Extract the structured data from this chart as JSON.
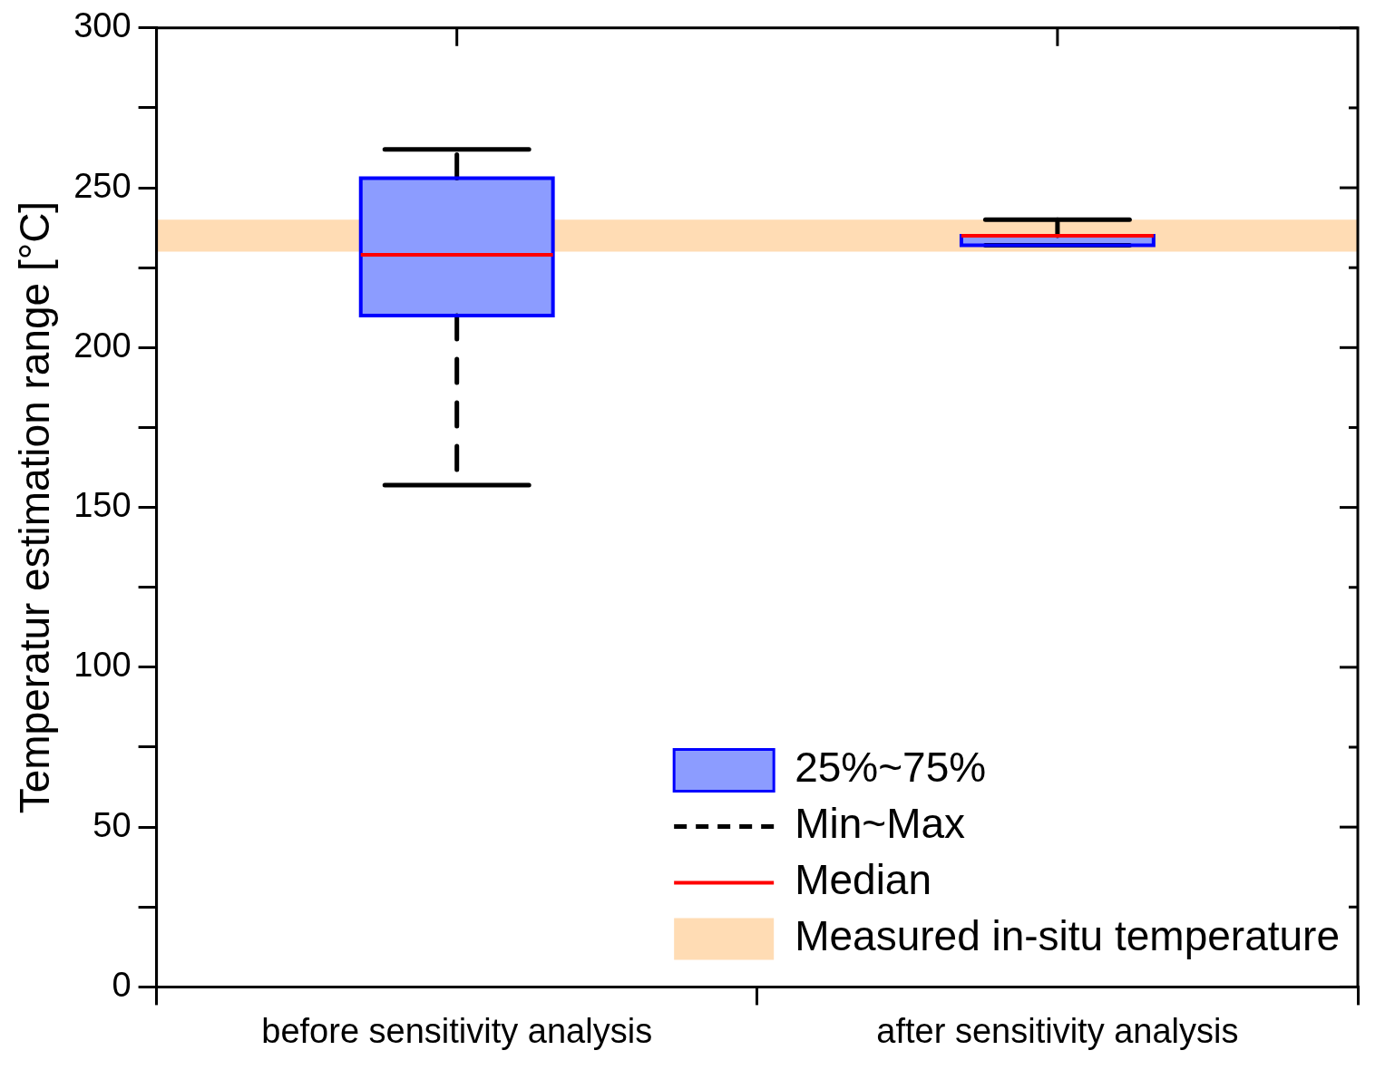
{
  "chart_data": {
    "type": "box",
    "ylabel": "Temperatur estimation range [°C]",
    "categories": [
      "before sensitivity analysis",
      "after sensitivity analysis"
    ],
    "series": [
      {
        "name": "25%~75%",
        "color": "#8c9cff",
        "boxes": [
          {
            "low": 157,
            "q1": 210,
            "median": 229,
            "q3": 253,
            "high": 262
          },
          {
            "low": 232,
            "q1": 232,
            "median": 235,
            "q3": 235,
            "high": 240
          }
        ]
      }
    ],
    "ylim": [
      0,
      300
    ],
    "yticks": [
      0,
      {
        "value": 25,
        "label": null
      },
      50,
      {
        "value": 75,
        "label": null
      },
      100,
      {
        "value": 125,
        "label": null
      },
      150,
      {
        "value": 175,
        "label": null
      },
      200,
      {
        "value": 225,
        "label": null
      },
      250,
      {
        "value": 275,
        "label": null
      },
      300
    ],
    "bands": [
      {
        "axis": "y",
        "from": 230,
        "to": 240,
        "label": "Measured in-situ temperature",
        "color": "#ffdcb4"
      }
    ],
    "annotations": [
      "Min~Max",
      "Median"
    ],
    "legend": "bottom right",
    "grid": false
  }
}
